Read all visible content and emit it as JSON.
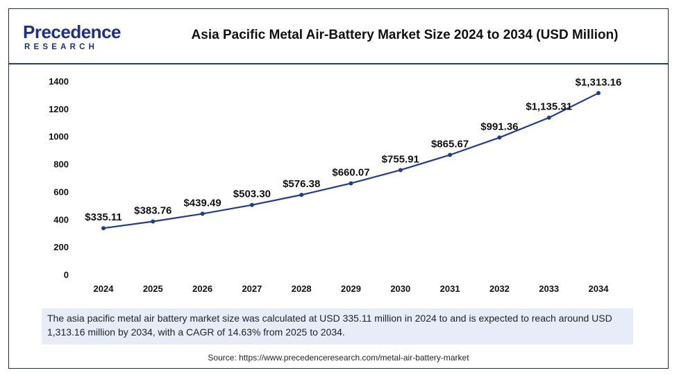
{
  "logo": {
    "main": "Precedence",
    "sub": "RESEARCH"
  },
  "colors": {
    "line": "#1f3d8a",
    "brand": "#1e2f8c",
    "note_bg": "#e6edf8"
  },
  "chart_data": {
    "type": "line",
    "title": "Asia Pacific Metal Air-Battery Market Size 2024 to 2034 (USD Million)",
    "xlabel": "",
    "ylabel": "",
    "categories": [
      "2024",
      "2025",
      "2026",
      "2027",
      "2028",
      "2029",
      "2030",
      "2031",
      "2032",
      "2033",
      "2034"
    ],
    "series": [
      {
        "values": [
          335.11,
          383.76,
          439.49,
          503.3,
          576.38,
          660.07,
          755.91,
          865.67,
          991.36,
          1135.31,
          1313.16
        ],
        "labels": [
          "$335.11",
          "$383.76",
          "$439.49",
          "$503.30",
          "$576.38",
          "$660.07",
          "$755.91",
          "$865.67",
          "$991.36",
          "$1,135.31",
          "$1,313.16"
        ]
      }
    ],
    "ylim": [
      0,
      1400
    ],
    "yticks": [
      "0",
      "200",
      "400",
      "600",
      "800",
      "1000",
      "1200",
      "1400"
    ],
    "grid": false,
    "legend": "none"
  },
  "note": "The asia pacific metal air battery market size was calculated at USD 335.11 million in 2024 to and is expected to reach around USD 1,313.16 million by 2034, with a CAGR of 14.63% from 2025 to 2034.",
  "source": "Source: https://www.precedenceresearch.com/metal-air-battery-market"
}
